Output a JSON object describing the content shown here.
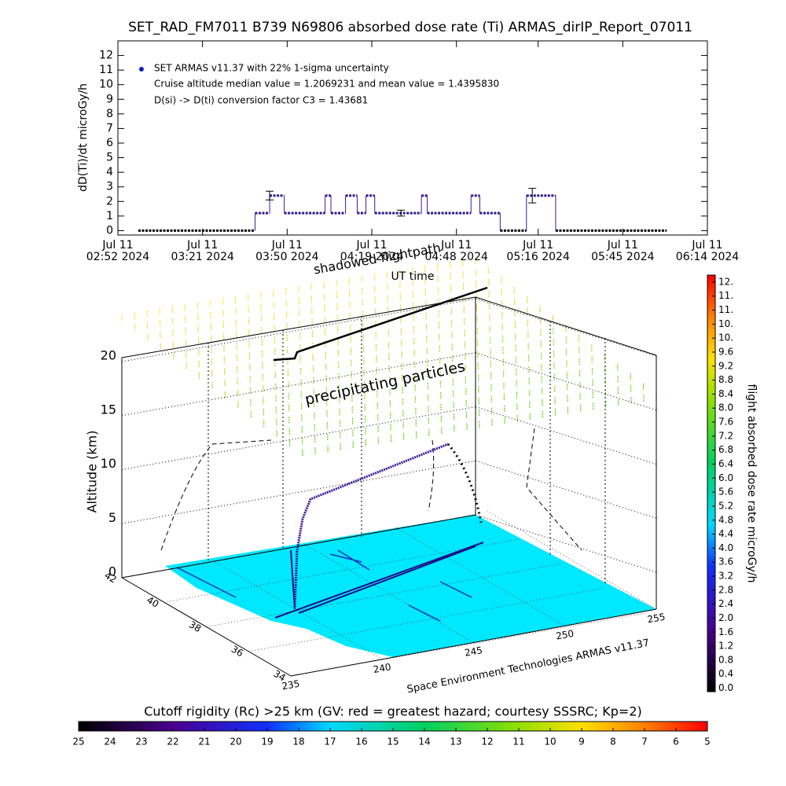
{
  "chart_data": [
    {
      "type": "line",
      "title": "SET_RAD_FM7011  B739 N69806 absorbed dose rate (Ti) ARMAS_dirIP_Report_07011",
      "y_label": "dD(Ti)/dt microGy/h",
      "x_label": "UT time",
      "legend": [
        "SET ARMAS v11.37 with 22% 1-sigma uncertainty",
        "Cruise altitude median value = 1.2069231 and mean value = 1.4395830",
        "D(si) -> D(ti) conversion factor C3 = 1.43681"
      ],
      "x": [
        "02:59",
        "03:39",
        "03:44",
        "03:49",
        "04:03",
        "04:05",
        "04:10",
        "04:14",
        "04:17",
        "04:20",
        "04:36",
        "04:38",
        "04:53",
        "04:56",
        "05:03",
        "05:12",
        "05:22",
        "06:00"
      ],
      "values": [
        0,
        1.2,
        2.4,
        1.2,
        2.4,
        1.2,
        2.4,
        1.2,
        2.4,
        1.2,
        2.4,
        1.2,
        2.4,
        1.2,
        0,
        2.4,
        0,
        0
      ],
      "color": "#2a1a8c",
      "zero_color": "#000000",
      "error_bars": [
        {
          "x": "03:44",
          "value": 2.4,
          "error": 0.3
        },
        {
          "x": "04:29",
          "value": 1.2,
          "error": 0.2
        },
        {
          "x": "05:14",
          "value": 2.4,
          "error": 0.5
        }
      ],
      "xlim": [
        "02:52",
        "06:14"
      ],
      "xticks": [
        {
          "value": "02:52",
          "label": "Jul 11\n02:52 2024"
        },
        {
          "value": "03:21",
          "label": "Jul 11\n03:21 2024"
        },
        {
          "value": "03:50",
          "label": "Jul 11\n03:50 2024"
        },
        {
          "value": "04:19",
          "label": "Jul 11\n04:19 2024"
        },
        {
          "value": "04:48",
          "label": "Jul 11\n04:48 2024"
        },
        {
          "value": "05:16",
          "label": "Jul 11\n05:16 2024"
        },
        {
          "value": "05:45",
          "label": "Jul 11\n05:45 2024"
        },
        {
          "value": "06:14",
          "label": "Jul 11\n06:14 2024"
        }
      ],
      "ylim": [
        -0.3,
        13
      ],
      "yticks": [
        0,
        1,
        2,
        3,
        4,
        5,
        6,
        7,
        8,
        9,
        10,
        11,
        12
      ]
    },
    {
      "type": "surface3d",
      "annotations": [
        "shadowed flightpath",
        "precipitating particles"
      ],
      "z_label": "Altitude (km)",
      "footer": "Space Environment Technologies ARMAS v11.37",
      "zlim": [
        0,
        20
      ],
      "zticks": [
        0,
        5,
        10,
        15,
        20
      ],
      "latlim": [
        42,
        34
      ],
      "latticks": [
        42,
        40,
        38,
        36,
        34
      ],
      "lonlim": [
        235,
        255
      ],
      "lonticks": [
        235,
        240,
        245,
        250,
        255
      ],
      "colorbar": {
        "label": "flight absorbed dose rate microGy/h",
        "lim": [
          -0.1,
          11.8
        ],
        "ticks": [
          {
            "value": 0,
            "label": "0.0"
          },
          0.4,
          0.8,
          1.2,
          1.6,
          {
            "value": 2,
            "label": "2.0"
          },
          2.4,
          2.8,
          3.2,
          3.6,
          {
            "value": 4,
            "label": "4.0"
          },
          4.4,
          4.8,
          5.2,
          5.6,
          {
            "value": 6,
            "label": "6.0"
          },
          6.4,
          6.8,
          7.2,
          7.6,
          {
            "value": 8,
            "label": "8.0"
          },
          8.4,
          8.8,
          9.2,
          9.6,
          {
            "value": 10,
            "label": "10."
          },
          {
            "value": 10.4,
            "label": "10."
          },
          {
            "value": 10.8,
            "label": "11."
          },
          {
            "value": 11.2,
            "label": "11."
          },
          {
            "value": 11.6,
            "label": "12."
          }
        ]
      },
      "rigidity_bar": {
        "title": "Cutoff rigidity (Rc) >25 km (GV: red = greatest hazard; courtesy SSSRC; Kp=2)",
        "lim": [
          25,
          5
        ],
        "ticks": [
          25,
          24,
          23,
          22,
          21,
          20,
          19,
          18,
          17,
          16,
          15,
          14,
          13,
          12,
          11,
          10,
          9,
          8,
          7,
          6,
          5
        ]
      }
    }
  ]
}
